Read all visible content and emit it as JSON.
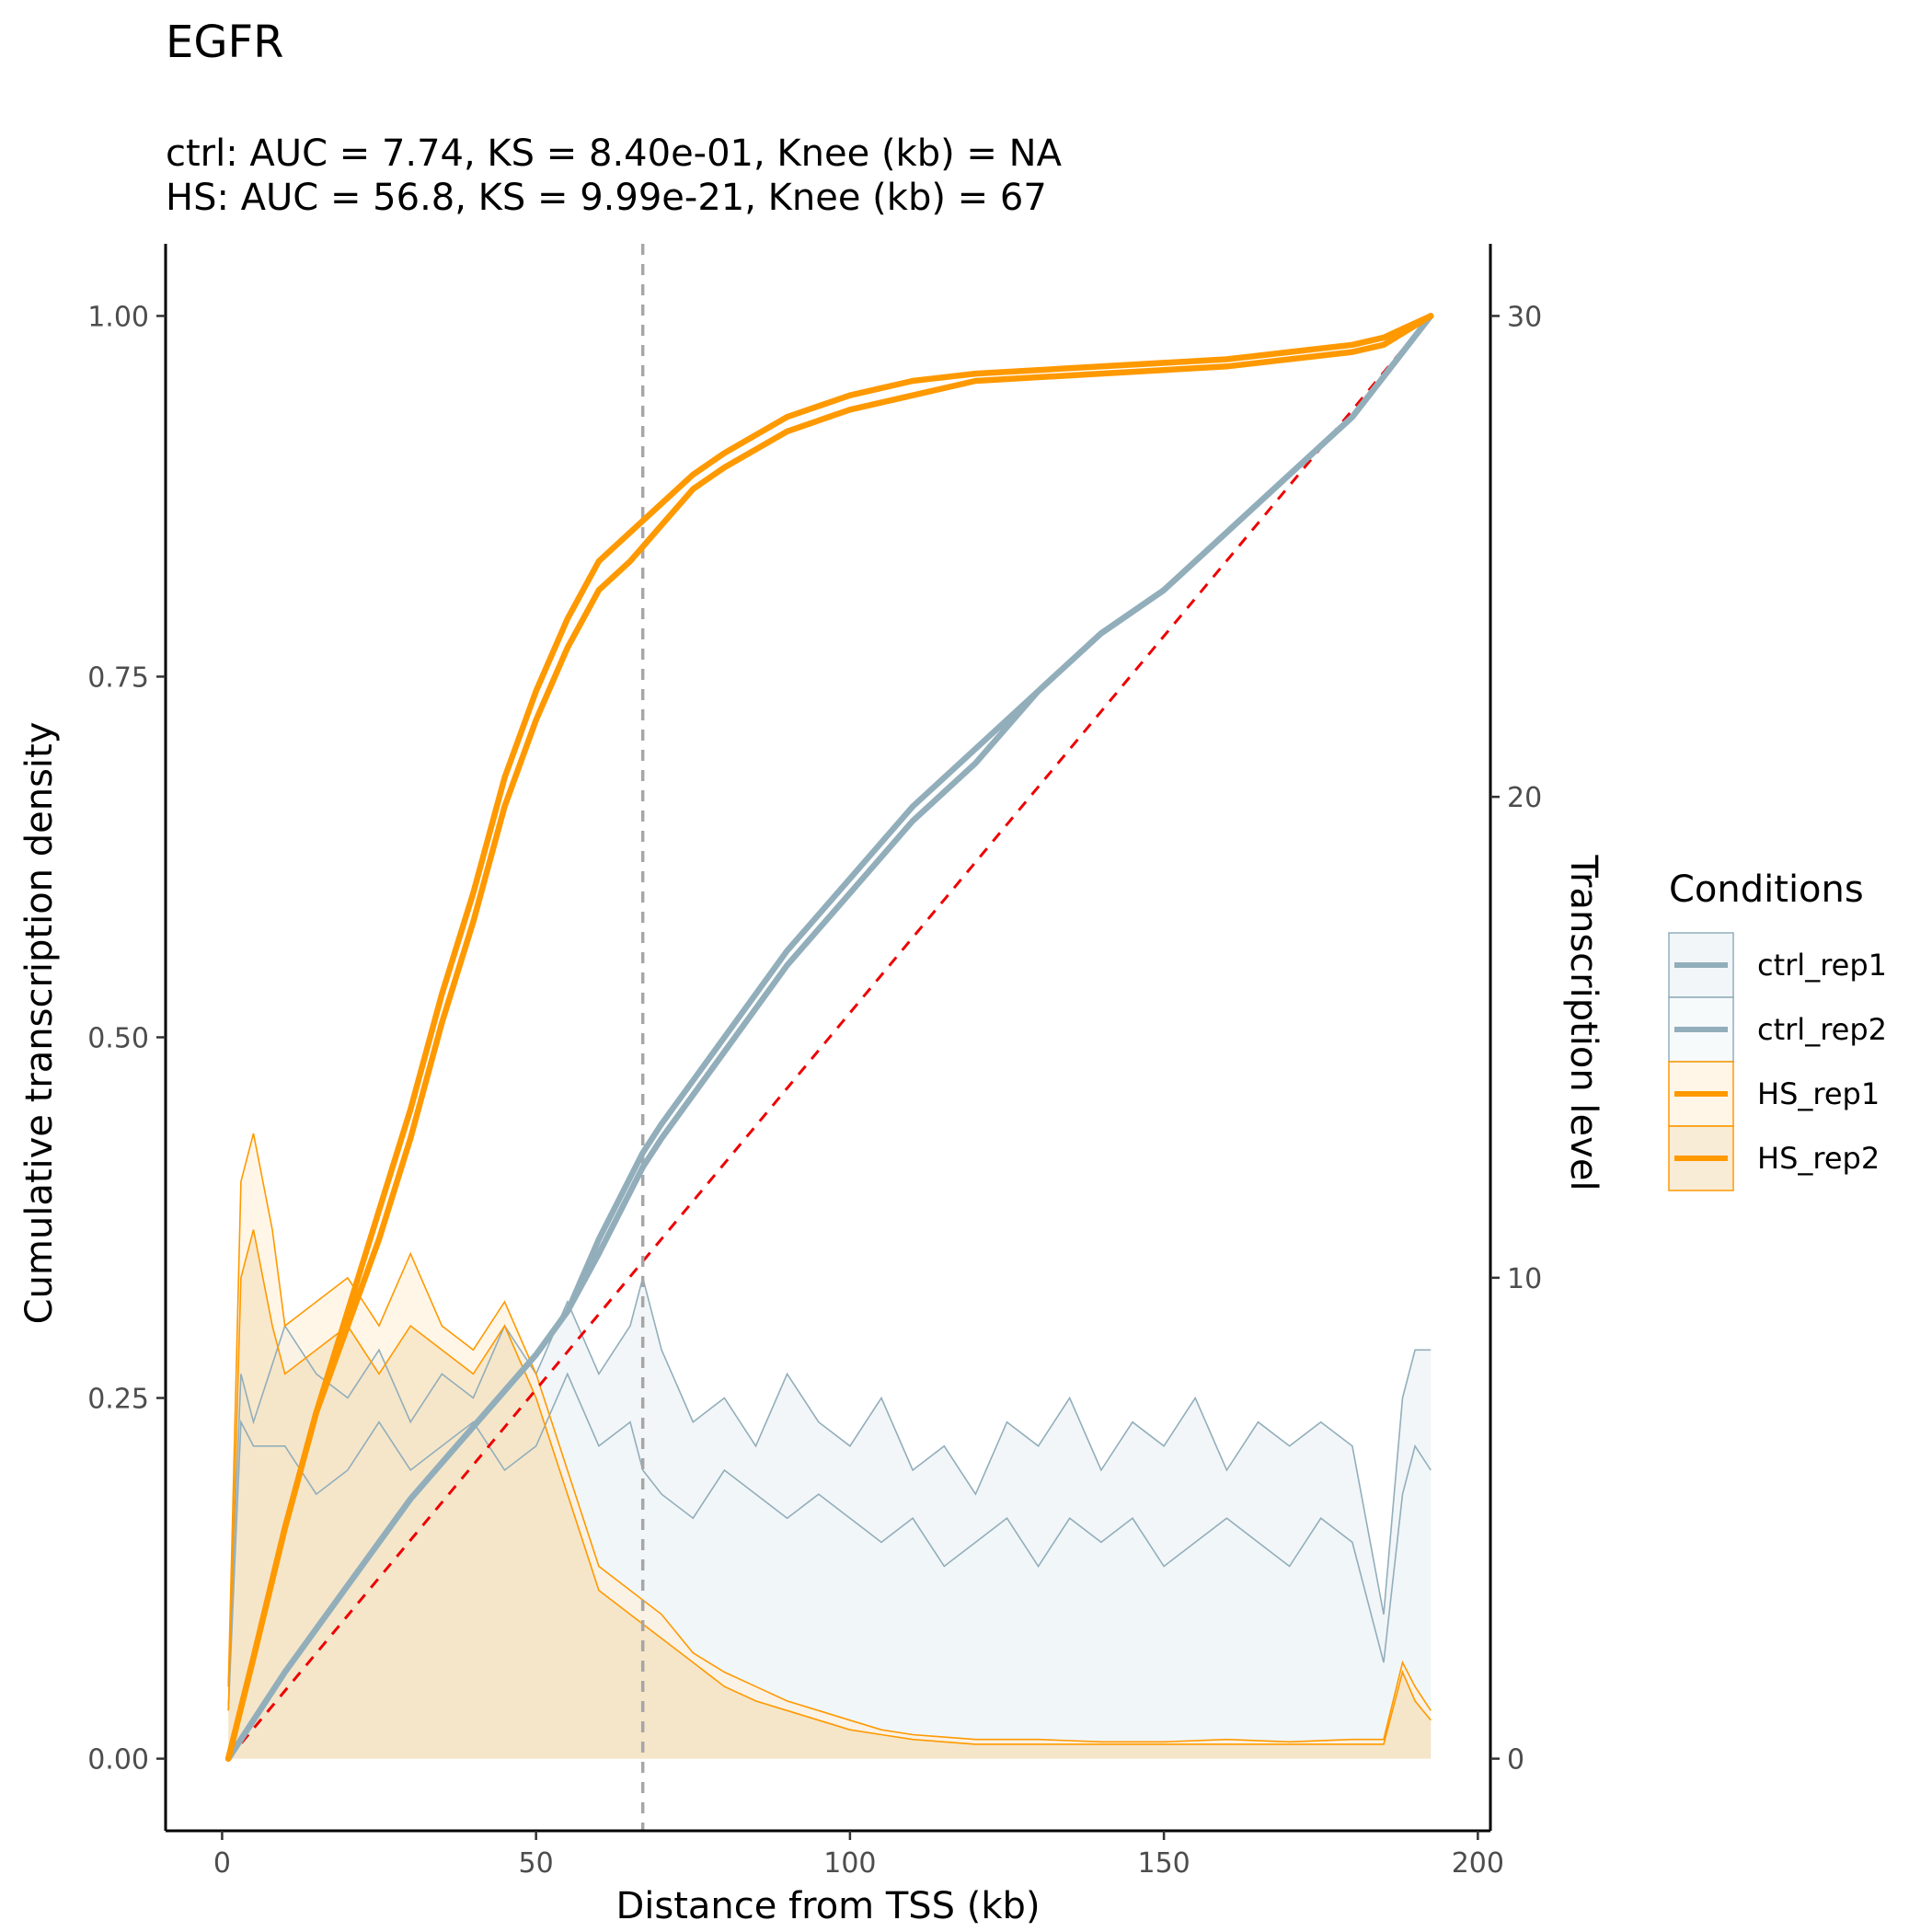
{
  "chart_data": {
    "type": "line",
    "title": "EGFR",
    "subtitle_lines": [
      "ctrl: AUC = 7.74, KS = 8.40e-01, Knee (kb) = NA",
      "HS: AUC = 56.8, KS = 9.99e-21, Knee (kb) = 67"
    ],
    "xlabel": "Distance from TSS (kb)",
    "ylabel": "Cumulative transcription density",
    "y2label": "Transcription level",
    "xlim": [
      -9,
      202
    ],
    "ylim": [
      -0.05,
      1.05
    ],
    "y2lim": [
      -1.5,
      31.5
    ],
    "x_ticks": [
      0,
      50,
      100,
      150,
      200
    ],
    "x_tick_labels": [
      "0",
      "50",
      "100",
      "150",
      "200"
    ],
    "y_ticks": [
      0,
      0.25,
      0.5,
      0.75,
      1.0
    ],
    "y_tick_labels": [
      "0.00",
      "0.25",
      "0.50",
      "0.75",
      "1.00"
    ],
    "y2_ticks": [
      0,
      10,
      20,
      30
    ],
    "y2_tick_labels": [
      "0",
      "10",
      "20",
      "30"
    ],
    "grid": false,
    "legend": {
      "title": "Conditions",
      "position": "right",
      "entries": [
        "ctrl_rep1",
        "ctrl_rep2",
        "HS_rep1",
        "HS_rep2"
      ]
    },
    "knee_line_x": 67,
    "reference_line": {
      "x": [
        1,
        192.5
      ],
      "y": [
        0,
        1
      ],
      "style": "dashed",
      "color": "#EE0000"
    },
    "cumulative_series": [
      {
        "name": "ctrl_rep1",
        "color": "#92AEBB",
        "x": [
          1,
          10,
          20,
          30,
          40,
          50,
          55,
          60,
          67,
          70,
          80,
          90,
          100,
          110,
          120,
          130,
          140,
          150,
          160,
          170,
          180,
          192.5
        ],
        "y": [
          0,
          0.06,
          0.12,
          0.18,
          0.23,
          0.28,
          0.31,
          0.36,
          0.42,
          0.44,
          0.5,
          0.56,
          0.61,
          0.66,
          0.7,
          0.74,
          0.78,
          0.81,
          0.85,
          0.89,
          0.93,
          1.0
        ]
      },
      {
        "name": "ctrl_rep2",
        "color": "#92AEBB",
        "x": [
          1,
          10,
          20,
          30,
          40,
          50,
          55,
          60,
          67,
          70,
          80,
          90,
          100,
          110,
          120,
          130,
          140,
          150,
          160,
          170,
          180,
          192.5
        ],
        "y": [
          0,
          0.06,
          0.12,
          0.18,
          0.23,
          0.28,
          0.31,
          0.35,
          0.41,
          0.43,
          0.49,
          0.55,
          0.6,
          0.65,
          0.69,
          0.74,
          0.78,
          0.81,
          0.85,
          0.89,
          0.93,
          1.0
        ]
      },
      {
        "name": "HS_rep1",
        "color": "#FF9900",
        "x": [
          1,
          5,
          10,
          15,
          20,
          25,
          30,
          35,
          40,
          45,
          50,
          55,
          60,
          65,
          70,
          75,
          80,
          90,
          100,
          110,
          120,
          140,
          160,
          180,
          185,
          192.5
        ],
        "y": [
          0,
          0.07,
          0.16,
          0.24,
          0.31,
          0.38,
          0.45,
          0.53,
          0.6,
          0.68,
          0.74,
          0.79,
          0.83,
          0.85,
          0.87,
          0.89,
          0.905,
          0.93,
          0.945,
          0.955,
          0.96,
          0.965,
          0.97,
          0.98,
          0.985,
          1.0
        ]
      },
      {
        "name": "HS_rep2",
        "color": "#FF9900",
        "x": [
          1,
          5,
          10,
          15,
          20,
          25,
          30,
          35,
          40,
          45,
          50,
          55,
          60,
          65,
          70,
          75,
          80,
          90,
          100,
          110,
          120,
          140,
          160,
          180,
          185,
          192.5
        ],
        "y": [
          0,
          0.07,
          0.16,
          0.24,
          0.3,
          0.36,
          0.43,
          0.51,
          0.58,
          0.66,
          0.72,
          0.77,
          0.81,
          0.83,
          0.855,
          0.88,
          0.895,
          0.92,
          0.935,
          0.945,
          0.955,
          0.96,
          0.965,
          0.975,
          0.98,
          1.0
        ]
      }
    ],
    "level_series": [
      {
        "name": "ctrl_rep1",
        "color": "#92AEBB",
        "fill": "#E8EFF2",
        "x": [
          1,
          3,
          5,
          10,
          15,
          20,
          25,
          30,
          35,
          40,
          45,
          50,
          55,
          60,
          65,
          67,
          70,
          75,
          80,
          85,
          90,
          95,
          100,
          105,
          110,
          115,
          120,
          125,
          130,
          135,
          140,
          145,
          150,
          155,
          160,
          165,
          170,
          175,
          180,
          185,
          188,
          190,
          192.5
        ],
        "y": [
          1.5,
          8.0,
          7.0,
          9.0,
          8.0,
          7.5,
          8.5,
          7.0,
          8.0,
          7.5,
          9.0,
          8.0,
          9.5,
          8.0,
          9.0,
          10.0,
          8.5,
          7.0,
          7.5,
          6.5,
          8.0,
          7.0,
          6.5,
          7.5,
          6.0,
          6.5,
          5.5,
          7.0,
          6.5,
          7.5,
          6.0,
          7.0,
          6.5,
          7.5,
          6.0,
          7.0,
          6.5,
          7.0,
          6.5,
          3.0,
          7.5,
          8.5,
          8.5
        ]
      },
      {
        "name": "ctrl_rep2",
        "color": "#92AEBB",
        "fill": "#F1F5F7",
        "x": [
          1,
          3,
          5,
          10,
          15,
          20,
          25,
          30,
          35,
          40,
          45,
          50,
          55,
          60,
          65,
          67,
          70,
          75,
          80,
          85,
          90,
          95,
          100,
          105,
          110,
          115,
          120,
          125,
          130,
          135,
          140,
          145,
          150,
          155,
          160,
          165,
          170,
          175,
          180,
          185,
          188,
          190,
          192.5
        ],
        "y": [
          1.0,
          7.0,
          6.5,
          6.5,
          5.5,
          6.0,
          7.0,
          6.0,
          6.5,
          7.0,
          6.0,
          6.5,
          8.0,
          6.5,
          7.0,
          6.0,
          5.5,
          5.0,
          6.0,
          5.5,
          5.0,
          5.5,
          5.0,
          4.5,
          5.0,
          4.0,
          4.5,
          5.0,
          4.0,
          5.0,
          4.5,
          5.0,
          4.0,
          4.5,
          5.0,
          4.5,
          4.0,
          5.0,
          4.5,
          2.0,
          5.5,
          6.5,
          6.0
        ]
      },
      {
        "name": "HS_rep1",
        "color": "#FF9900",
        "fill": "#FFEFD6",
        "x": [
          1,
          3,
          5,
          8,
          10,
          15,
          20,
          25,
          30,
          35,
          40,
          45,
          50,
          55,
          60,
          65,
          70,
          75,
          80,
          85,
          90,
          95,
          100,
          105,
          110,
          120,
          130,
          140,
          150,
          160,
          170,
          180,
          185,
          188,
          190,
          192.5
        ],
        "y": [
          1.5,
          12.0,
          13.0,
          11.0,
          9.0,
          9.5,
          10.0,
          9.0,
          10.5,
          9.0,
          8.5,
          9.5,
          8.0,
          6.0,
          4.0,
          3.5,
          3.0,
          2.2,
          1.8,
          1.5,
          1.2,
          1.0,
          0.8,
          0.6,
          0.5,
          0.4,
          0.4,
          0.35,
          0.35,
          0.4,
          0.35,
          0.4,
          0.4,
          2.0,
          1.5,
          1.0
        ]
      },
      {
        "name": "HS_rep2",
        "color": "#FF9900",
        "fill": "#F3DDB4",
        "x": [
          1,
          3,
          5,
          8,
          10,
          15,
          20,
          25,
          30,
          35,
          40,
          45,
          50,
          55,
          60,
          65,
          70,
          75,
          80,
          85,
          90,
          95,
          100,
          105,
          110,
          120,
          130,
          140,
          150,
          160,
          170,
          180,
          185,
          188,
          190,
          192.5
        ],
        "y": [
          1.0,
          10.0,
          11.0,
          9.0,
          8.0,
          8.5,
          9.0,
          8.0,
          9.0,
          8.5,
          8.0,
          9.0,
          7.5,
          5.5,
          3.5,
          3.0,
          2.5,
          2.0,
          1.5,
          1.2,
          1.0,
          0.8,
          0.6,
          0.5,
          0.4,
          0.3,
          0.3,
          0.3,
          0.3,
          0.3,
          0.3,
          0.3,
          0.3,
          1.8,
          1.2,
          0.8
        ]
      }
    ]
  }
}
